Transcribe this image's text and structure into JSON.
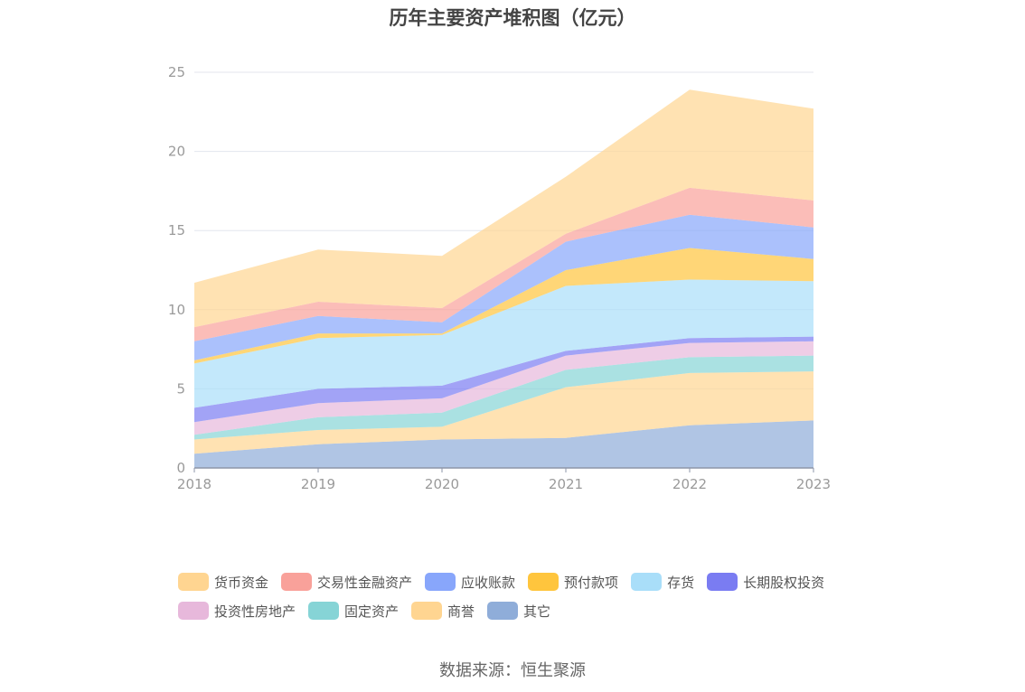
{
  "chart_data": {
    "type": "area",
    "stacked": true,
    "title": "历年主要资产堆积图（亿元）",
    "categories": [
      "2018",
      "2019",
      "2020",
      "2021",
      "2022",
      "2023"
    ],
    "y_ticks": [
      "0",
      "5",
      "10",
      "15",
      "20",
      "25"
    ],
    "ylim": [
      0,
      25
    ],
    "series": [
      {
        "name": "其它",
        "color": "#8fadd9",
        "values": [
          0.9,
          1.5,
          1.8,
          1.9,
          2.7,
          3.0
        ]
      },
      {
        "name": "商誉",
        "color": "#ffd591",
        "values": [
          0.9,
          0.9,
          0.8,
          3.2,
          3.3,
          3.1
        ]
      },
      {
        "name": "固定资产",
        "color": "#86d4d6",
        "values": [
          0.3,
          0.8,
          0.9,
          1.1,
          1.0,
          1.0
        ]
      },
      {
        "name": "投资性房地产",
        "color": "#e7b8db",
        "values": [
          0.8,
          0.9,
          0.9,
          0.9,
          0.9,
          0.9
        ]
      },
      {
        "name": "长期股权投资",
        "color": "#7a7cf2",
        "values": [
          0.9,
          0.9,
          0.8,
          0.3,
          0.3,
          0.3
        ]
      },
      {
        "name": "存货",
        "color": "#a9def9",
        "values": [
          2.8,
          3.2,
          3.2,
          4.1,
          3.7,
          3.5
        ]
      },
      {
        "name": "预付款项",
        "color": "#ffc53d",
        "values": [
          0.2,
          0.3,
          0.1,
          1.0,
          2.0,
          1.4
        ]
      },
      {
        "name": "应收账款",
        "color": "#88a6fb",
        "values": [
          1.2,
          1.1,
          0.7,
          1.8,
          2.1,
          2.0
        ]
      },
      {
        "name": "交易性金融资产",
        "color": "#f9a19a",
        "values": [
          0.9,
          0.9,
          0.9,
          0.5,
          1.7,
          1.7
        ]
      },
      {
        "name": "货币资金",
        "color": "#ffd591",
        "values": [
          2.8,
          3.3,
          3.3,
          3.6,
          6.2,
          5.8
        ]
      }
    ]
  },
  "legend": {
    "row1": [
      {
        "name": "货币资金",
        "color": "#ffd591"
      },
      {
        "name": "交易性金融资产",
        "color": "#f9a19a"
      },
      {
        "name": "应收账款",
        "color": "#88a6fb"
      },
      {
        "name": "预付款项",
        "color": "#ffc53d"
      },
      {
        "name": "存货",
        "color": "#a9def9"
      },
      {
        "name": "长期股权投资",
        "color": "#7a7cf2"
      }
    ],
    "row2": [
      {
        "name": "投资性房地产",
        "color": "#e7b8db"
      },
      {
        "name": "固定资产",
        "color": "#86d4d6"
      },
      {
        "name": "商誉",
        "color": "#ffd591"
      },
      {
        "name": "其它",
        "color": "#8fadd9"
      }
    ]
  },
  "source": "数据来源：恒生聚源"
}
